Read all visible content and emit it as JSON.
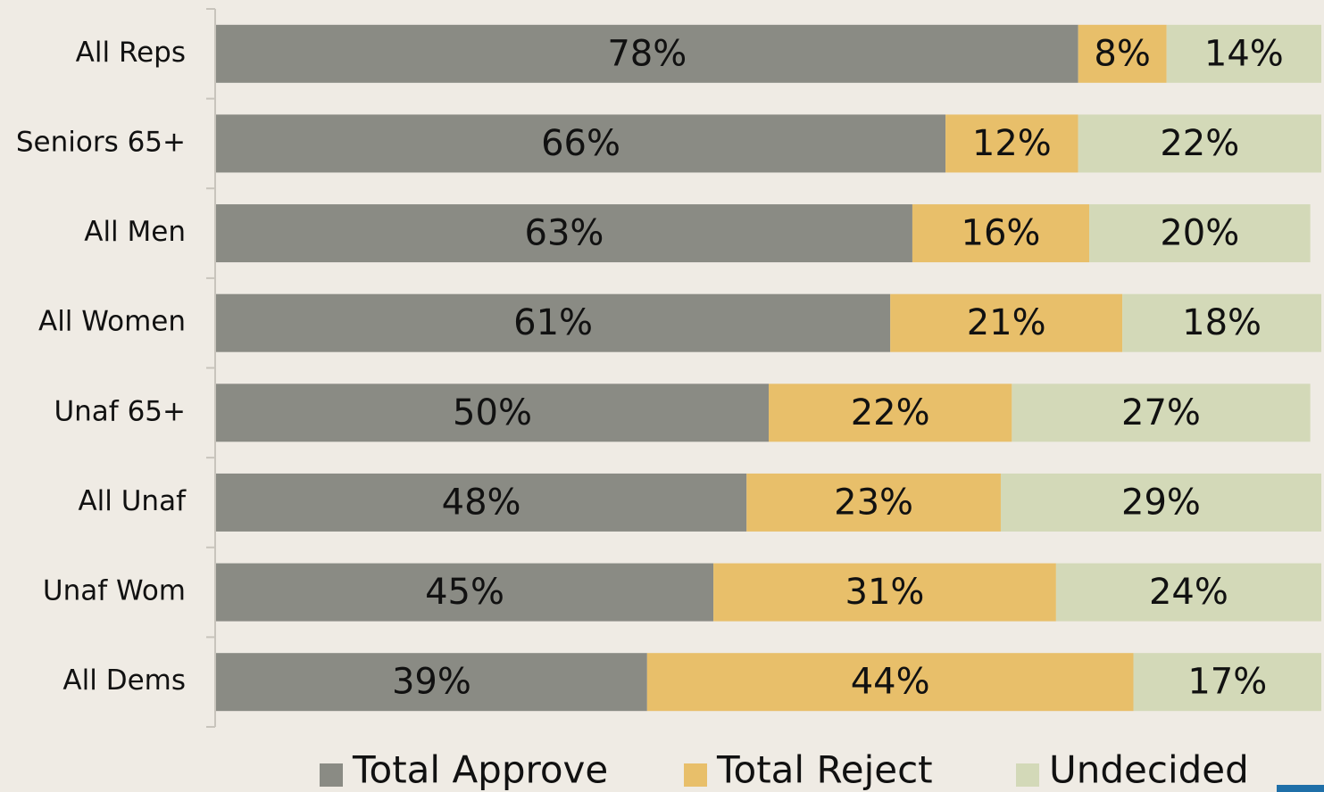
{
  "chart_data": {
    "type": "stacked-bar-horizontal",
    "categories": [
      "All Reps",
      "Seniors 65+",
      "All Men",
      "All Women",
      "Unaf 65+",
      "All Unaf",
      "Unaf Wom",
      "All Dems"
    ],
    "series": [
      {
        "name": "Total Approve",
        "color": "#8a8b84",
        "values": [
          78,
          66,
          63,
          61,
          50,
          48,
          45,
          39
        ],
        "value_labels": [
          "78%",
          "66%",
          "63%",
          "61%",
          "50%",
          "48%",
          "45%",
          "39%"
        ]
      },
      {
        "name": "Total Reject",
        "color": "#e8bf6a",
        "values": [
          8,
          12,
          16,
          21,
          22,
          23,
          31,
          44
        ],
        "value_labels": [
          "8%",
          "12%",
          "16%",
          "21%",
          "22%",
          "23%",
          "31%",
          "44%"
        ]
      },
      {
        "name": "Undecided",
        "color": "#d3d9b8",
        "values": [
          14,
          22,
          20,
          18,
          27,
          29,
          24,
          17
        ],
        "value_labels": [
          "14%",
          "22%",
          "20%",
          "18%",
          "27%",
          "29%",
          "24%",
          "17%"
        ]
      }
    ],
    "xlim": [
      0,
      100
    ],
    "legend": "bottom"
  }
}
